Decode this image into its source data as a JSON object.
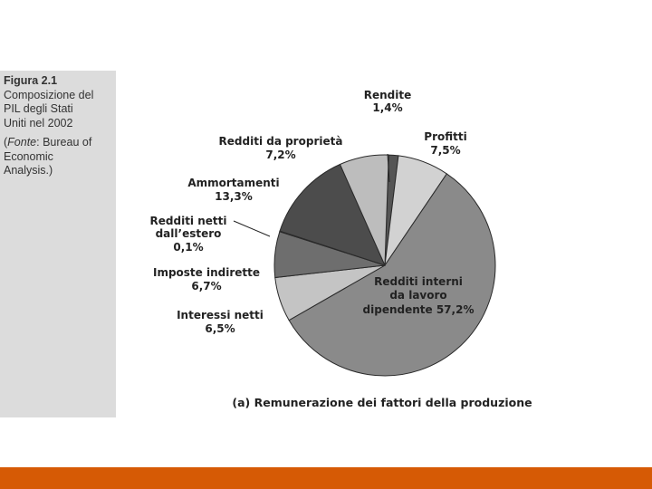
{
  "caption": {
    "figure": "Figura 2.1",
    "line1": "Composizione del",
    "line2": "PIL degli Stati",
    "line3": "Uniti nel 2002",
    "source_open": "(",
    "source_label": "Fonte",
    "source_rest1": ": Bureau of",
    "source_rest2": "Economic",
    "source_rest3": "Analysis.)"
  },
  "chart_data": {
    "type": "pie",
    "subtitle": "(a) Remunerazione dei fattori della produzione",
    "slices": [
      {
        "label": "Rendite",
        "value": 1.4,
        "value_label": "1,4%",
        "color": "#555555"
      },
      {
        "label": "Profitti",
        "value": 7.5,
        "value_label": "7,5%",
        "color": "#d2d2d2"
      },
      {
        "label": "Redditi interni da lavoro dipendente",
        "value": 57.2,
        "value_label": "57,2%",
        "color": "#8a8a8a"
      },
      {
        "label": "Interessi netti",
        "value": 6.5,
        "value_label": "6,5%",
        "color": "#c4c4c4"
      },
      {
        "label": "Imposte indirette",
        "value": 6.7,
        "value_label": "6,7%",
        "color": "#6e6e6e"
      },
      {
        "label": "Redditi netti dall'estero",
        "value": 0.1,
        "value_label": "0,1%",
        "color": "#444444"
      },
      {
        "label": "Ammortamenti",
        "value": 13.3,
        "value_label": "13,3%",
        "color": "#4c4c4c"
      },
      {
        "label": "Redditi da proprietà",
        "value": 7.2,
        "value_label": "7,2%",
        "color": "#bdbdbd"
      }
    ],
    "labels": {
      "rendite_name": "Rendite",
      "rendite_val": "1,4%",
      "profitti_name": "Profitti",
      "profitti_val": "7,5%",
      "lavoro_l1": "Redditi interni",
      "lavoro_l2": "da lavoro",
      "lavoro_l3": "dipendente 57,2%",
      "interessi_name": "Interessi netti",
      "interessi_val": "6,5%",
      "imposte_name": "Imposte indirette",
      "imposte_val": "6,7%",
      "estero_l1": "Redditi netti",
      "estero_l2": "dall’estero",
      "estero_val": "0,1%",
      "ammortamenti_name": "Ammortamenti",
      "ammortamenti_val": "13,3%",
      "proprieta_name": "Redditi da proprietà",
      "proprieta_val": "7,2%"
    }
  }
}
